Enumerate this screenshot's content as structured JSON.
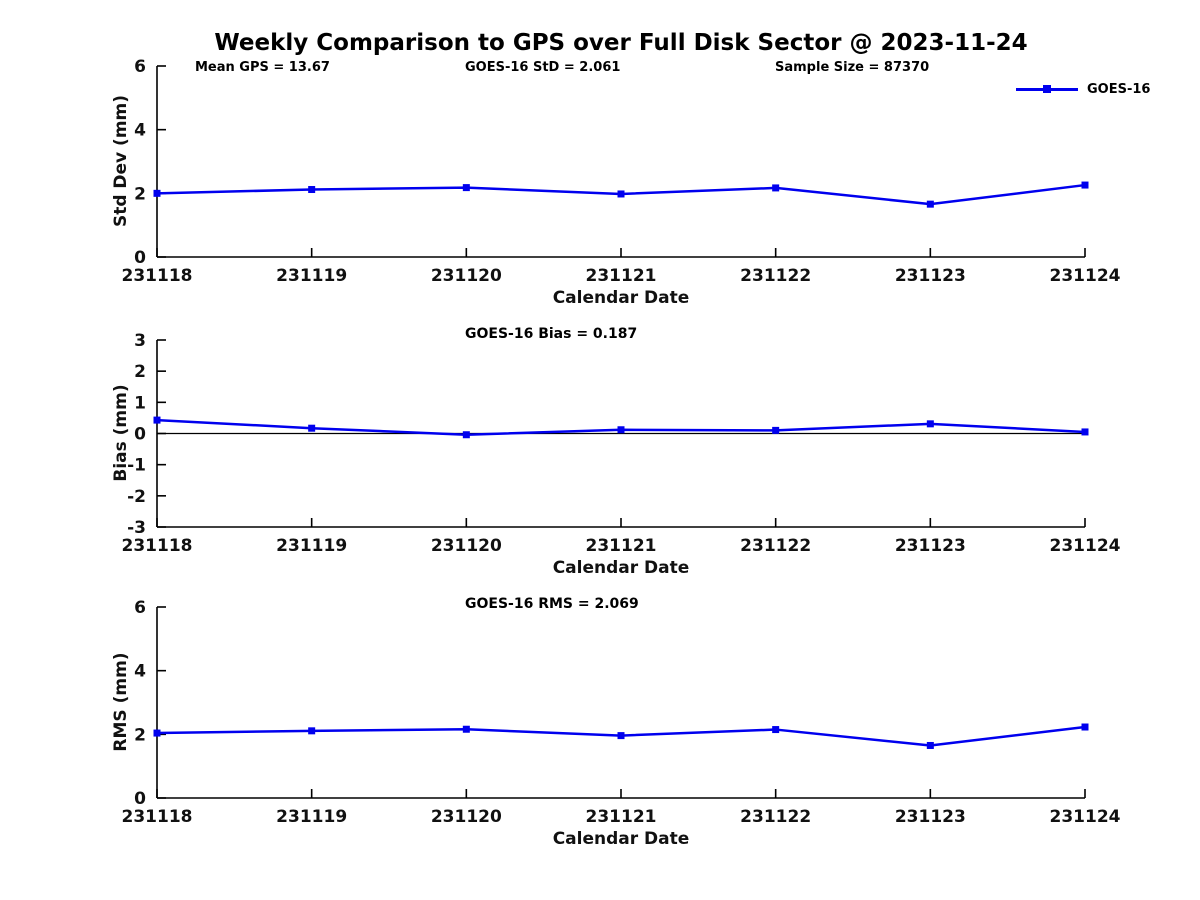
{
  "title": "Weekly Comparison to GPS over Full Disk Sector @ 2023-11-24",
  "legend": {
    "label": "GOES-16"
  },
  "colors": {
    "line": "#0000EE",
    "axis": "#000000",
    "text": "#000000",
    "background": "#FFFFFF"
  },
  "chart_data": [
    {
      "type": "line",
      "name": "std-dev-panel",
      "annotations": [
        "Mean GPS = 13.67",
        "GOES-16 StD = 2.061",
        "Sample Size = 87370"
      ],
      "ylabel": "Std Dev (mm)",
      "xlabel": "Calendar Date",
      "categories": [
        "231118",
        "231119",
        "231120",
        "231121",
        "231122",
        "231123",
        "231124"
      ],
      "series": [
        {
          "name": "GOES-16",
          "values": [
            2.0,
            2.12,
            2.18,
            1.98,
            2.17,
            1.66,
            2.26
          ]
        }
      ],
      "ylim": [
        0,
        6
      ],
      "yticks": [
        0,
        2,
        4,
        6
      ],
      "grid": false,
      "zero_line": false,
      "legend_position": "top-right"
    },
    {
      "type": "line",
      "name": "bias-panel",
      "annotations": [
        "GOES-16 Bias  = 0.187"
      ],
      "ylabel": "Bias (mm)",
      "xlabel": "Calendar Date",
      "categories": [
        "231118",
        "231119",
        "231120",
        "231121",
        "231122",
        "231123",
        "231124"
      ],
      "series": [
        {
          "name": "GOES-16",
          "values": [
            0.43,
            0.17,
            -0.04,
            0.12,
            0.1,
            0.31,
            0.05
          ]
        }
      ],
      "ylim": [
        -3,
        3
      ],
      "yticks": [
        -3,
        -2,
        -1,
        0,
        1,
        2,
        3
      ],
      "grid": false,
      "zero_line": true,
      "legend_position": "none"
    },
    {
      "type": "line",
      "name": "rms-panel",
      "annotations": [
        "GOES-16 RMS = 2.069"
      ],
      "ylabel": "RMS (mm)",
      "xlabel": "Calendar Date",
      "categories": [
        "231118",
        "231119",
        "231120",
        "231121",
        "231122",
        "231123",
        "231124"
      ],
      "series": [
        {
          "name": "GOES-16",
          "values": [
            2.04,
            2.11,
            2.16,
            1.96,
            2.15,
            1.65,
            2.23
          ]
        }
      ],
      "ylim": [
        0,
        6
      ],
      "yticks": [
        0,
        2,
        4,
        6
      ],
      "grid": false,
      "zero_line": false,
      "legend_position": "none"
    }
  ]
}
